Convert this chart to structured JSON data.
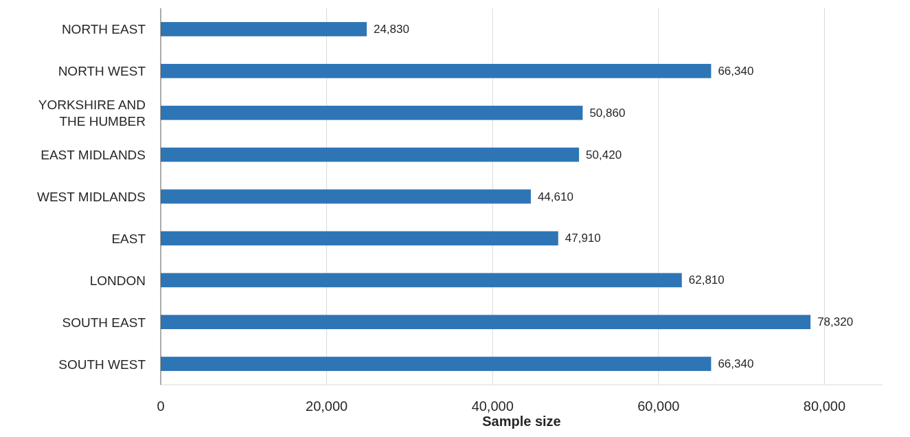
{
  "chart_data": {
    "type": "bar",
    "orientation": "horizontal",
    "xlabel": "Sample size",
    "categories": [
      "NORTH EAST",
      "NORTH WEST",
      "YORKSHIRE AND THE HUMBER",
      "EAST MIDLANDS",
      "WEST MIDLANDS",
      "EAST",
      "LONDON",
      "SOUTH EAST",
      "SOUTH WEST"
    ],
    "values": [
      24830,
      66340,
      50860,
      50420,
      44610,
      47910,
      62810,
      78320,
      66340
    ],
    "value_labels": [
      "24,830",
      "66,340",
      "50,860",
      "50,420",
      "44,610",
      "47,910",
      "62,810",
      "78,320",
      "66,340"
    ],
    "color": "#2e75b6",
    "xlim": [
      0,
      87000
    ],
    "xticks": [
      0,
      {
        "value": 20000,
        "label": "20,000"
      },
      {
        "value": 40000,
        "label": "40,000"
      },
      {
        "value": 60000,
        "label": "60,000"
      },
      {
        "value": 80000,
        "label": "80,000"
      }
    ],
    "grid": "x"
  }
}
